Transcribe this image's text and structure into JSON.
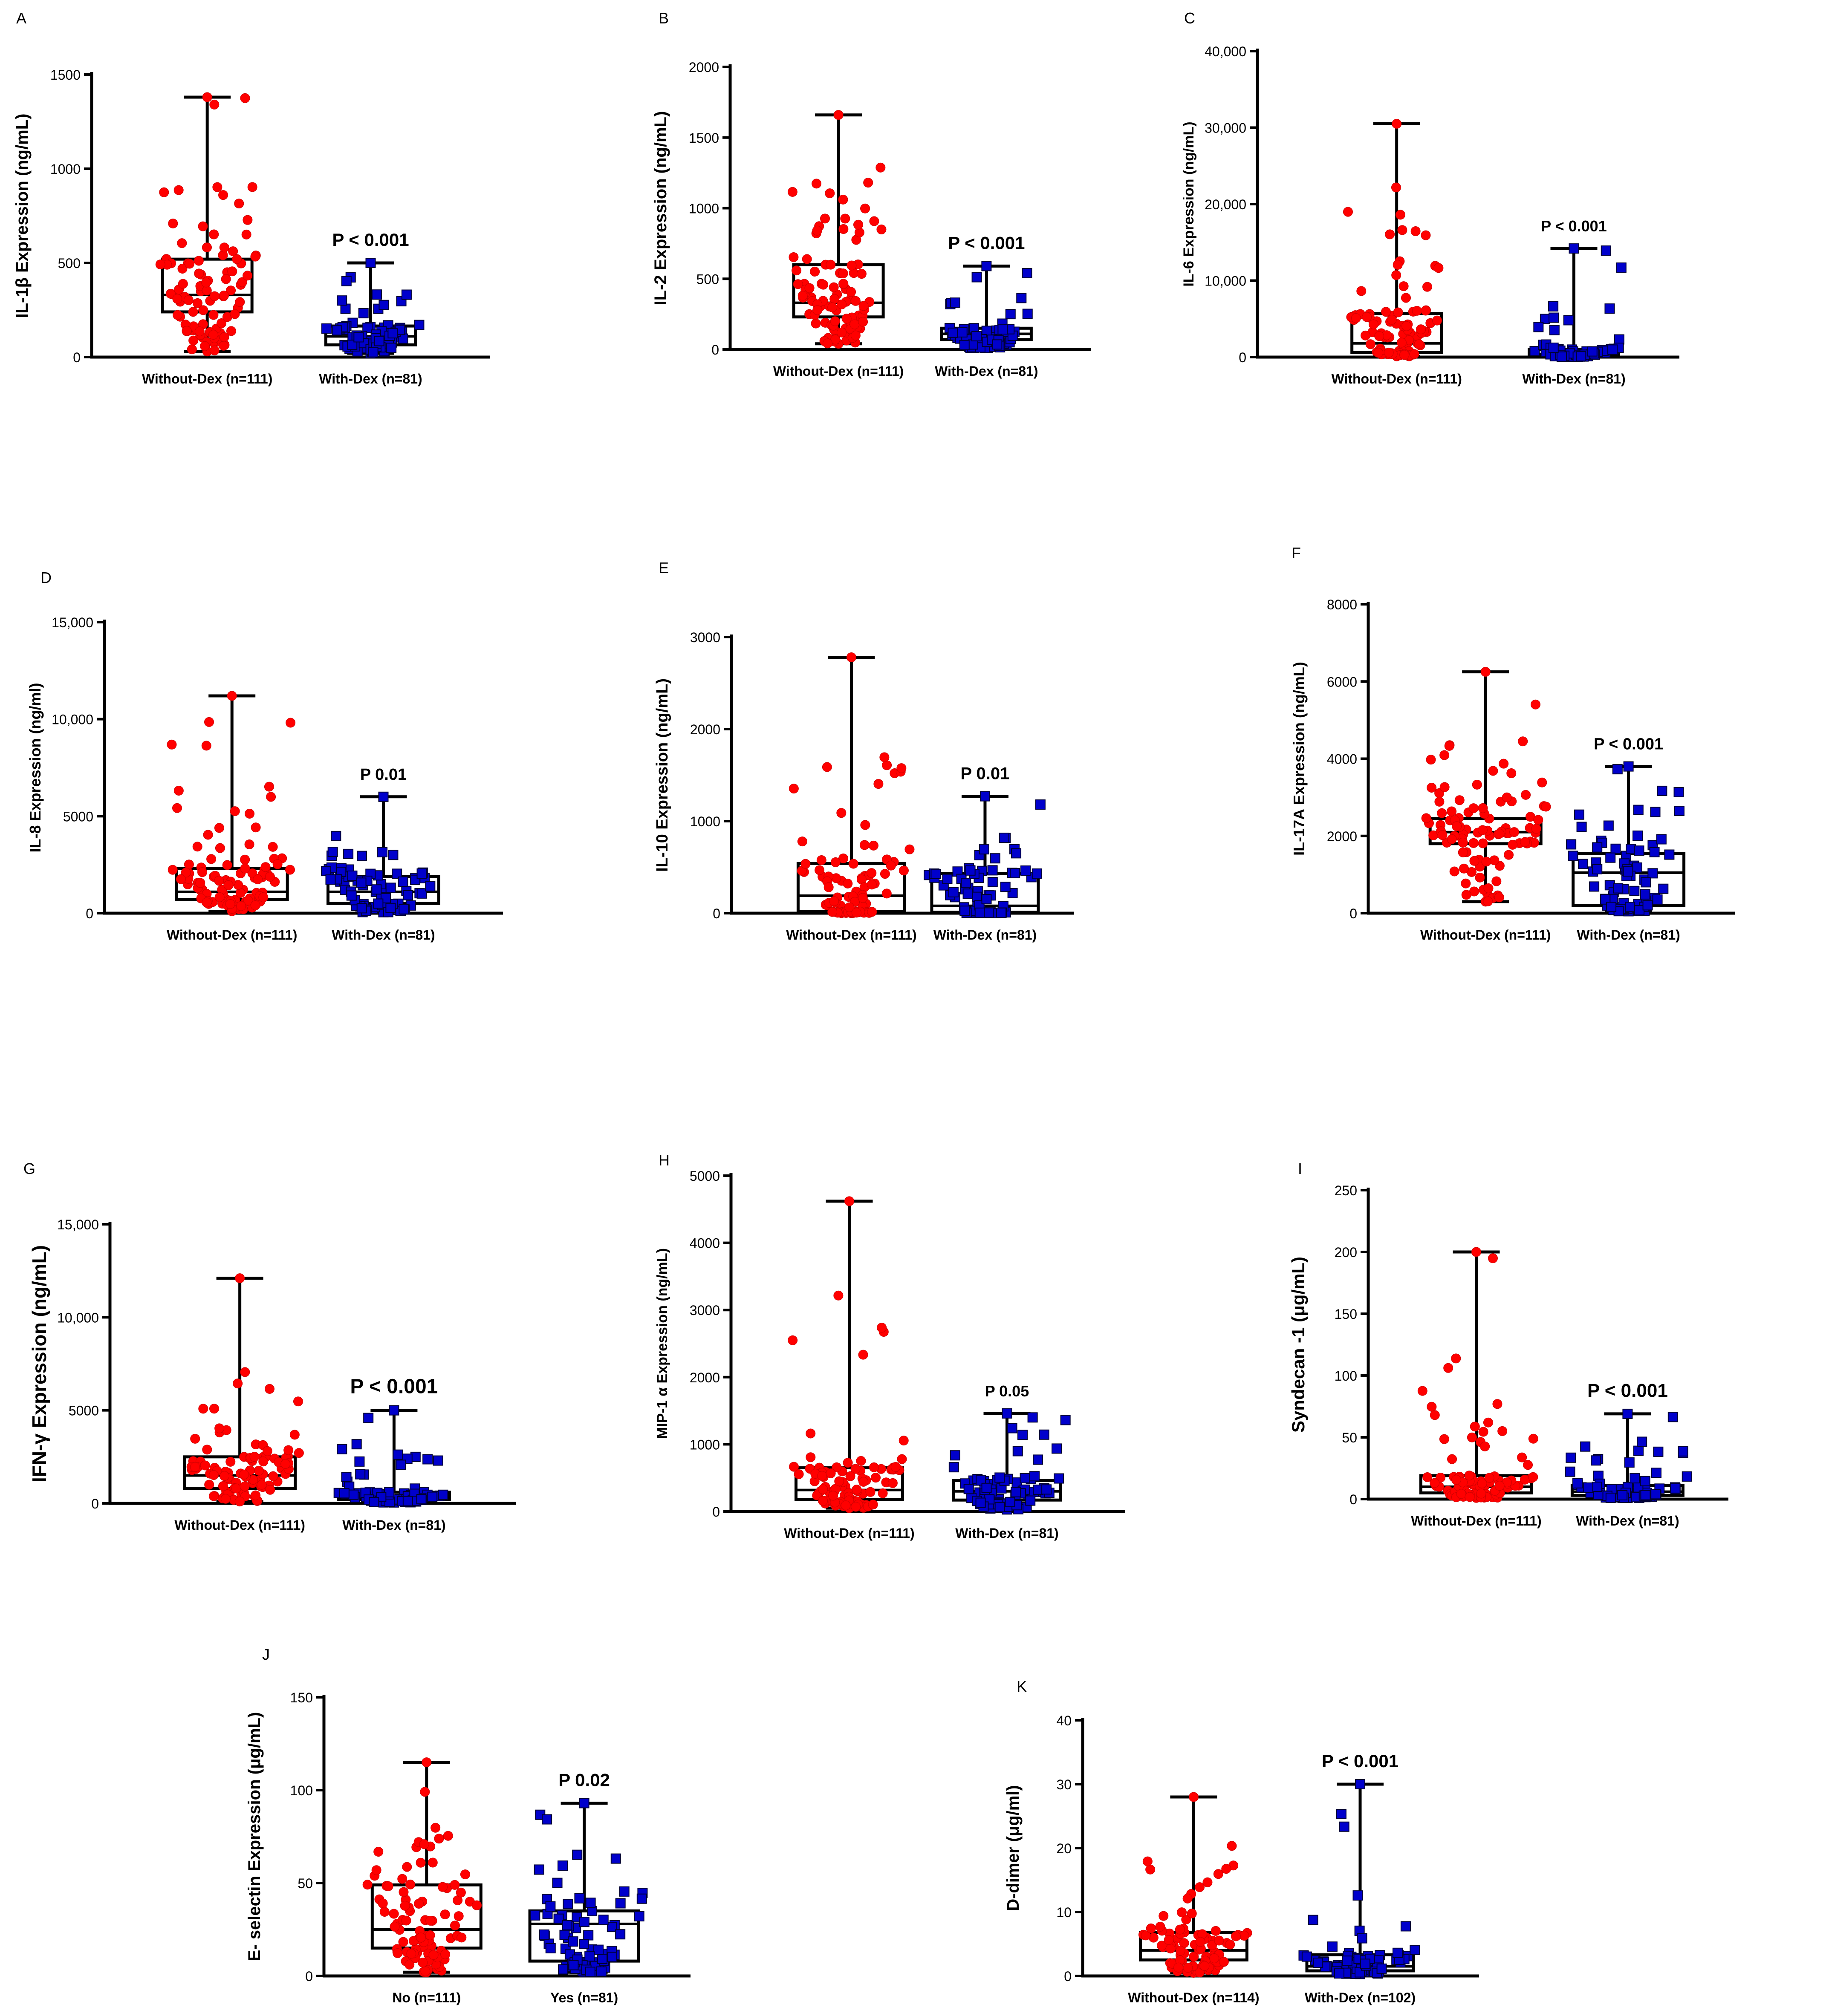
{
  "colors": {
    "group1": "#ff0000",
    "group2": "#0000cc",
    "axis": "#000000"
  },
  "chart_data": [
    {
      "panel": "A",
      "type": "box-dot",
      "ylabel": "IL-1β Expression (ng/mL)",
      "ylim": [
        0,
        1500
      ],
      "yticks": [
        0,
        500,
        1000,
        1500
      ],
      "ytick_labels": [
        "0",
        "500",
        "1000",
        "1500"
      ],
      "categories": [
        "Without-Dex  (n=111)",
        "With-Dex  (n=81)"
      ],
      "annotation": "P < 0.001",
      "boxes": [
        {
          "min": 30,
          "q1": 240,
          "median": 330,
          "q3": 520,
          "max": 1380
        },
        {
          "min": 20,
          "q1": 65,
          "median": 110,
          "q3": 165,
          "max": 500
        }
      ]
    },
    {
      "panel": "B",
      "type": "box-dot",
      "ylabel": "IL-2 Expression (ng/mL)",
      "ylim": [
        0,
        2000
      ],
      "yticks": [
        0,
        500,
        1000,
        1500,
        2000
      ],
      "ytick_labels": [
        "0",
        "500",
        "1000",
        "1500",
        "2000"
      ],
      "categories": [
        "Without-Dex  (n=111)",
        "With-Dex  (n=81)"
      ],
      "annotation": "P < 0.001",
      "boxes": [
        {
          "min": 40,
          "q1": 230,
          "median": 330,
          "q3": 600,
          "max": 1660
        },
        {
          "min": 10,
          "q1": 70,
          "median": 110,
          "q3": 150,
          "max": 590
        }
      ]
    },
    {
      "panel": "C",
      "type": "box-dot",
      "ylabel": "IL-6 Expression (ng/mL)",
      "ylim": [
        0,
        40000
      ],
      "yticks": [
        0,
        10000,
        20000,
        30000,
        40000
      ],
      "ytick_labels": [
        "0",
        "10,000",
        "20,000",
        "30,000",
        "40,000"
      ],
      "categories": [
        "Without-Dex  (n=111)",
        "With-Dex  (n=81)"
      ],
      "annotation": "P < 0.001",
      "boxes": [
        {
          "min": 100,
          "q1": 600,
          "median": 1800,
          "q3": 5700,
          "max": 30500
        },
        {
          "min": 50,
          "q1": 150,
          "median": 400,
          "q3": 1000,
          "max": 14200
        }
      ]
    },
    {
      "panel": "D",
      "type": "box-dot",
      "ylabel": "IL-8 Expression (ng/ml)",
      "ylim": [
        0,
        15000
      ],
      "yticks": [
        0,
        5000,
        10000,
        15000
      ],
      "ytick_labels": [
        "0",
        "5000",
        "10,000",
        "15,000"
      ],
      "categories": [
        "Without-Dex  (n=111)",
        "With-Dex  (n=81)"
      ],
      "annotation": "P 0.01",
      "boxes": [
        {
          "min": 100,
          "q1": 700,
          "median": 1100,
          "q3": 2300,
          "max": 11200
        },
        {
          "min": 50,
          "q1": 500,
          "median": 1100,
          "q3": 1900,
          "max": 6000
        }
      ]
    },
    {
      "panel": "E",
      "type": "box-dot",
      "ylabel": "IL-10 Expression (ng/mL)",
      "ylim": [
        0,
        3000
      ],
      "yticks": [
        0,
        1000,
        2000,
        3000
      ],
      "ytick_labels": [
        "0",
        "1000",
        "2000",
        "3000"
      ],
      "categories": [
        "Without-Dex  (n=111)",
        "With-Dex  (n=81)"
      ],
      "annotation": "P 0.01",
      "boxes": [
        {
          "min": 0,
          "q1": 20,
          "median": 190,
          "q3": 540,
          "max": 2780
        },
        {
          "min": 0,
          "q1": 10,
          "median": 80,
          "q3": 430,
          "max": 1270
        }
      ]
    },
    {
      "panel": "F",
      "type": "box-dot",
      "ylabel": "IL-17A Expression (ng/mL)",
      "ylim": [
        0,
        8000
      ],
      "yticks": [
        0,
        2000,
        4000,
        6000,
        8000
      ],
      "ytick_labels": [
        "0",
        "2000",
        "4000",
        "6000",
        "8000"
      ],
      "categories": [
        "Without-Dex  (n=111)",
        "With-Dex  (n=81)"
      ],
      "annotation": "P < 0.001",
      "boxes": [
        {
          "min": 300,
          "q1": 1800,
          "median": 2100,
          "q3": 2450,
          "max": 6250
        },
        {
          "min": 50,
          "q1": 200,
          "median": 1050,
          "q3": 1550,
          "max": 3800
        }
      ]
    },
    {
      "panel": "G",
      "type": "box-dot",
      "ylabel": "IFN-γ Expression (ng/mL)",
      "ylim": [
        0,
        15000
      ],
      "yticks": [
        0,
        5000,
        10000,
        15000
      ],
      "ytick_labels": [
        "0",
        "5000",
        "10,000",
        "15,000"
      ],
      "categories": [
        "Without-Dex  (n=111)",
        "With-Dex  (n=81)"
      ],
      "annotation": "P < 0.001",
      "boxes": [
        {
          "min": 100,
          "q1": 800,
          "median": 1500,
          "q3": 2500,
          "max": 12100
        },
        {
          "min": 50,
          "q1": 200,
          "median": 400,
          "q3": 600,
          "max": 5000
        }
      ]
    },
    {
      "panel": "H",
      "type": "box-dot",
      "ylabel": "MIP-1 α Expression (ng/mL)",
      "ylim": [
        0,
        5000
      ],
      "yticks": [
        0,
        1000,
        2000,
        3000,
        4000,
        5000
      ],
      "ytick_labels": [
        "0",
        "1000",
        "2000",
        "3000",
        "4000",
        "5000"
      ],
      "categories": [
        "Without-Dex  (n=111)",
        "With-Dex  (n=81)"
      ],
      "annotation": "P 0.05",
      "boxes": [
        {
          "min": 50,
          "q1": 180,
          "median": 320,
          "q3": 650,
          "max": 4620
        },
        {
          "min": 30,
          "q1": 170,
          "median": 300,
          "q3": 460,
          "max": 1460
        }
      ]
    },
    {
      "panel": "I",
      "type": "box-dot",
      "ylabel": "Syndecan -1 (μg/mL)",
      "ylim": [
        0,
        250
      ],
      "yticks": [
        0,
        50,
        100,
        150,
        200,
        250
      ],
      "ytick_labels": [
        "0",
        "50",
        "100",
        "150",
        "200",
        "250"
      ],
      "categories": [
        "Without-Dex  (n=111)",
        "With-Dex  (n=81)"
      ],
      "annotation": "P < 0.001",
      "boxes": [
        {
          "min": 1,
          "q1": 5,
          "median": 10,
          "q3": 19,
          "max": 200
        },
        {
          "min": 1,
          "q1": 3,
          "median": 6,
          "q3": 11,
          "max": 69
        }
      ]
    },
    {
      "panel": "J",
      "type": "box-dot",
      "ylabel": "E- selectin Expression (μg/mL)",
      "ylim": [
        0,
        150
      ],
      "yticks": [
        0,
        50,
        100,
        150
      ],
      "ytick_labels": [
        "0",
        "50",
        "100",
        "150"
      ],
      "categories": [
        "No  (n=111)",
        "Yes (n=81)"
      ],
      "annotation": "P 0.02",
      "boxes": [
        {
          "min": 2,
          "q1": 15,
          "median": 25,
          "q3": 49,
          "max": 115
        },
        {
          "min": 2,
          "q1": 8,
          "median": 28,
          "q3": 35,
          "max": 93
        }
      ]
    },
    {
      "panel": "K",
      "type": "box-dot",
      "ylabel": "D-dimer  (μg/ml)",
      "ylim": [
        0,
        40
      ],
      "yticks": [
        0,
        10,
        20,
        30,
        40
      ],
      "ytick_labels": [
        "0",
        "10",
        "20",
        "30",
        "40"
      ],
      "categories": [
        "Without-Dex  (n=114)",
        "With-Dex  (n=102)"
      ],
      "annotation": "P < 0.001",
      "boxes": [
        {
          "min": 0.5,
          "q1": 2.5,
          "median": 4,
          "q3": 6.8,
          "max": 28
        },
        {
          "min": 0.3,
          "q1": 0.8,
          "median": 1.5,
          "q3": 3.3,
          "max": 30
        }
      ]
    }
  ]
}
